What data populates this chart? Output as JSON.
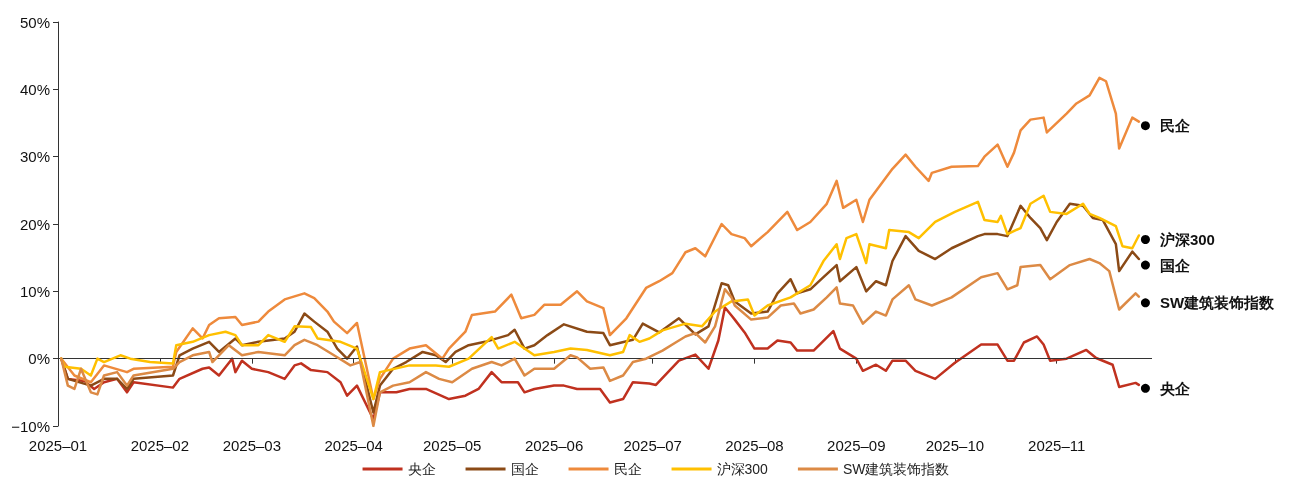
{
  "chart_data": {
    "type": "line",
    "xlim": [
      "2025-01-01",
      "2025-11-30"
    ],
    "xticks": [
      {
        "value": "2025-01-01",
        "label": "2025–01"
      },
      {
        "value": "2025-02-01",
        "label": "2025–02"
      },
      {
        "value": "2025-03-01",
        "label": "2025–03"
      },
      {
        "value": "2025-04-01",
        "label": "2025–04"
      },
      {
        "value": "2025-05-01",
        "label": "2025–05"
      },
      {
        "value": "2025-06-01",
        "label": "2025–06"
      },
      {
        "value": "2025-07-01",
        "label": "2025–07"
      },
      {
        "value": "2025-08-01",
        "label": "2025–08"
      },
      {
        "value": "2025-09-01",
        "label": "2025–09"
      },
      {
        "value": "2025-10-01",
        "label": "2025–10"
      },
      {
        "value": "2025-11-01",
        "label": "2025–11"
      }
    ],
    "ylim": [
      -10,
      50
    ],
    "yticks": [
      {
        "value": -10,
        "label": "−10%"
      },
      {
        "value": 0,
        "label": "0%"
      },
      {
        "value": 10,
        "label": "10%"
      },
      {
        "value": 20,
        "label": "20%"
      },
      {
        "value": 30,
        "label": "30%"
      },
      {
        "value": 40,
        "label": "40%"
      },
      {
        "value": 50,
        "label": "50%"
      }
    ],
    "grid": false,
    "legend": "bottom",
    "marker": "none",
    "ref_lines": [
      {
        "axis": "y",
        "value": 0,
        "color": "#333333"
      }
    ],
    "series": [
      {
        "name": "央企",
        "color": "#c0311f",
        "x": [
          "2025-01-02",
          "2025-01-04",
          "2025-01-09",
          "2025-01-12",
          "2025-01-15",
          "2025-01-19",
          "2025-01-22",
          "2025-01-24",
          "2025-02-05",
          "2025-02-07",
          "2025-02-14",
          "2025-02-16",
          "2025-02-19",
          "2025-02-23",
          "2025-02-24",
          "2025-02-26",
          "2025-03-01",
          "2025-03-06",
          "2025-03-11",
          "2025-03-14",
          "2025-03-16",
          "2025-03-19",
          "2025-03-24",
          "2025-03-28",
          "2025-03-30",
          "2025-04-02",
          "2025-04-07",
          "2025-04-09",
          "2025-04-14",
          "2025-04-18",
          "2025-04-23",
          "2025-04-30",
          "2025-05-05",
          "2025-05-09",
          "2025-05-13",
          "2025-05-16",
          "2025-05-21",
          "2025-05-23",
          "2025-05-26",
          "2025-06-01",
          "2025-06-04",
          "2025-06-08",
          "2025-06-15",
          "2025-06-18",
          "2025-06-22",
          "2025-06-25",
          "2025-06-30",
          "2025-07-02",
          "2025-07-09",
          "2025-07-14",
          "2025-07-18",
          "2025-07-21",
          "2025-07-23",
          "2025-07-25",
          "2025-07-26",
          "2025-07-29",
          "2025-08-01",
          "2025-08-05",
          "2025-08-08",
          "2025-08-12",
          "2025-08-14",
          "2025-08-19",
          "2025-08-25",
          "2025-08-27",
          "2025-09-01",
          "2025-09-03",
          "2025-09-07",
          "2025-09-10",
          "2025-09-12",
          "2025-09-16",
          "2025-09-19",
          "2025-09-25",
          "2025-10-01",
          "2025-10-09",
          "2025-10-14",
          "2025-10-17",
          "2025-10-19",
          "2025-10-22",
          "2025-10-26",
          "2025-10-28",
          "2025-10-30",
          "2025-11-04",
          "2025-11-10",
          "2025-11-13",
          "2025-11-18",
          "2025-11-20",
          "2025-11-25",
          "2025-11-26"
        ],
        "values": [
          0,
          -3,
          -3.3,
          -4.5,
          -3.5,
          -3,
          -5,
          -3.5,
          -4.3,
          -3,
          -1.5,
          -1.3,
          -2.5,
          0,
          -2,
          -0.3,
          -1.5,
          -2,
          -3,
          -1,
          -0.7,
          -1.7,
          -2,
          -3.5,
          -5.5,
          -4,
          -9,
          -5,
          -5,
          -4.5,
          -4.5,
          -6,
          -5.5,
          -4.5,
          -2,
          -3.5,
          -3.5,
          -5,
          -4.5,
          -4,
          -4,
          -4.5,
          -4.5,
          -6.5,
          -6,
          -3.5,
          -3.7,
          -3.9,
          -0.3,
          0.6,
          -1.5,
          2.7,
          7.6,
          6.4,
          5.8,
          3.9,
          1.5,
          1.5,
          2.7,
          2.4,
          1.2,
          1.2,
          4.1,
          1.5,
          0,
          -1.8,
          -0.9,
          -1.8,
          -0.3,
          -0.3,
          -1.8,
          -3,
          -0.6,
          2.1,
          2.1,
          -0.3,
          -0.3,
          2.4,
          3.3,
          2.1,
          -0.3,
          0,
          1.3,
          0.1,
          -0.9,
          -4.2,
          -3.6,
          -3.9
        ]
      },
      {
        "name": "国企",
        "color": "#8b4a16",
        "x": [
          "2025-01-02",
          "2025-01-04",
          "2025-01-11",
          "2025-01-15",
          "2025-01-19",
          "2025-01-22",
          "2025-01-24",
          "2025-02-05",
          "2025-02-07",
          "2025-02-11",
          "2025-02-16",
          "2025-02-19",
          "2025-02-24",
          "2025-02-26",
          "2025-03-03",
          "2025-03-11",
          "2025-03-14",
          "2025-03-17",
          "2025-03-20",
          "2025-03-24",
          "2025-03-27",
          "2025-03-30",
          "2025-04-02",
          "2025-04-07",
          "2025-04-09",
          "2025-04-13",
          "2025-04-17",
          "2025-04-22",
          "2025-04-26",
          "2025-04-29",
          "2025-05-02",
          "2025-05-06",
          "2025-05-11",
          "2025-05-18",
          "2025-05-20",
          "2025-05-23",
          "2025-05-26",
          "2025-05-30",
          "2025-06-04",
          "2025-06-11",
          "2025-06-16",
          "2025-06-18",
          "2025-06-25",
          "2025-06-28",
          "2025-07-03",
          "2025-07-09",
          "2025-07-14",
          "2025-07-18",
          "2025-07-22",
          "2025-07-24",
          "2025-07-26",
          "2025-07-31",
          "2025-08-05",
          "2025-08-08",
          "2025-08-12",
          "2025-08-14",
          "2025-08-18",
          "2025-08-22",
          "2025-08-26",
          "2025-08-27",
          "2025-09-01",
          "2025-09-04",
          "2025-09-07",
          "2025-09-10",
          "2025-09-12",
          "2025-09-16",
          "2025-09-20",
          "2025-09-25",
          "2025-09-30",
          "2025-10-08",
          "2025-10-10",
          "2025-10-14",
          "2025-10-17",
          "2025-10-21",
          "2025-10-24",
          "2025-10-27",
          "2025-10-29",
          "2025-11-01",
          "2025-11-05",
          "2025-11-09",
          "2025-11-12",
          "2025-11-15",
          "2025-11-19",
          "2025-11-20",
          "2025-11-24",
          "2025-11-26"
        ],
        "values": [
          0,
          -3,
          -4,
          -3,
          -3,
          -4.5,
          -3,
          -2.5,
          0.5,
          1.5,
          2.5,
          1,
          3,
          2,
          2.5,
          3,
          4,
          6.7,
          5.5,
          4,
          1.5,
          0,
          1.8,
          -8,
          -4,
          -1.5,
          -0.5,
          1,
          0.5,
          -0.5,
          1,
          2,
          2.5,
          3.5,
          4.3,
          1.5,
          2,
          3.5,
          5.1,
          4,
          3.8,
          2,
          2.8,
          5.2,
          3.9,
          6,
          3.6,
          4.8,
          11.2,
          10.9,
          8.5,
          6.7,
          7,
          9.7,
          11.8,
          9.7,
          10.3,
          12.1,
          13.9,
          11.5,
          13.6,
          10,
          11.5,
          10.9,
          14.5,
          18.2,
          16,
          14.8,
          16.4,
          18.2,
          18.5,
          18.5,
          18.2,
          22.7,
          20.9,
          19.4,
          17.6,
          20.3,
          23,
          22.7,
          20.9,
          20.6,
          17,
          13,
          15.9,
          14.8
        ]
      },
      {
        "name": "民企",
        "color": "#ee8a3c",
        "x": [
          "2025-01-02",
          "2025-01-06",
          "2025-01-11",
          "2025-01-15",
          "2025-01-22",
          "2025-01-24",
          "2025-02-05",
          "2025-02-06",
          "2025-02-11",
          "2025-02-14",
          "2025-02-16",
          "2025-02-19",
          "2025-02-24",
          "2025-02-26",
          "2025-03-03",
          "2025-03-06",
          "2025-03-11",
          "2025-03-17",
          "2025-03-20",
          "2025-03-24",
          "2025-03-26",
          "2025-03-30",
          "2025-04-02",
          "2025-04-07",
          "2025-04-09",
          "2025-04-13",
          "2025-04-18",
          "2025-04-23",
          "2025-04-28",
          "2025-04-30",
          "2025-05-05",
          "2025-05-07",
          "2025-05-14",
          "2025-05-19",
          "2025-05-22",
          "2025-05-26",
          "2025-05-29",
          "2025-06-03",
          "2025-06-08",
          "2025-06-11",
          "2025-06-16",
          "2025-06-18",
          "2025-06-23",
          "2025-06-29",
          "2025-07-03",
          "2025-07-07",
          "2025-07-11",
          "2025-07-14",
          "2025-07-17",
          "2025-07-22",
          "2025-07-25",
          "2025-07-29",
          "2025-07-31",
          "2025-08-05",
          "2025-08-11",
          "2025-08-14",
          "2025-08-18",
          "2025-08-23",
          "2025-08-26",
          "2025-08-28",
          "2025-09-01",
          "2025-09-03",
          "2025-09-05",
          "2025-09-12",
          "2025-09-16",
          "2025-09-19",
          "2025-09-23",
          "2025-09-24",
          "2025-09-30",
          "2025-10-08",
          "2025-10-10",
          "2025-10-14",
          "2025-10-17",
          "2025-10-19",
          "2025-10-21",
          "2025-10-24",
          "2025-10-28",
          "2025-10-29",
          "2025-11-04",
          "2025-11-07",
          "2025-11-11",
          "2025-11-14",
          "2025-11-16",
          "2025-11-19",
          "2025-11-20",
          "2025-11-24",
          "2025-11-26"
        ],
        "values": [
          0,
          -2.5,
          -3.5,
          -1,
          -2,
          -1.5,
          -1.2,
          1,
          4.5,
          3,
          5,
          6,
          6.2,
          5,
          5.5,
          7,
          8.8,
          9.7,
          9,
          7,
          5.5,
          3.8,
          5.3,
          -6,
          -3,
          0,
          1.5,
          2,
          0,
          1.5,
          4,
          6.5,
          7,
          9.5,
          6,
          6.5,
          8,
          8,
          10,
          8.5,
          7.5,
          3.5,
          6,
          10.5,
          11.5,
          12.7,
          15.8,
          16.4,
          15.2,
          20,
          18.5,
          17.9,
          16.7,
          18.8,
          21.8,
          19.1,
          20.3,
          23,
          26.4,
          22.4,
          23.6,
          20.3,
          23.6,
          28.2,
          30.3,
          28.5,
          26.4,
          27.6,
          28.5,
          28.6,
          30,
          31.8,
          28.5,
          30.6,
          33.9,
          35.5,
          35.8,
          33.6,
          36.4,
          37.9,
          39.1,
          41.7,
          41.2,
          36.4,
          31.2,
          35.8,
          35.2
        ]
      },
      {
        "name": "沪深300",
        "color": "#ffc000",
        "x": [
          "2025-01-02",
          "2025-01-03",
          "2025-01-08",
          "2025-01-11",
          "2025-01-13",
          "2025-01-15",
          "2025-01-20",
          "2025-01-23",
          "2025-01-29",
          "2025-02-05",
          "2025-02-06",
          "2025-02-11",
          "2025-02-16",
          "2025-02-21",
          "2025-02-24",
          "2025-02-26",
          "2025-03-03",
          "2025-03-06",
          "2025-03-11",
          "2025-03-14",
          "2025-03-19",
          "2025-03-21",
          "2025-03-28",
          "2025-04-02",
          "2025-04-07",
          "2025-04-09",
          "2025-04-18",
          "2025-04-26",
          "2025-04-30",
          "2025-05-06",
          "2025-05-13",
          "2025-05-15",
          "2025-05-20",
          "2025-05-26",
          "2025-06-01",
          "2025-06-06",
          "2025-06-11",
          "2025-06-18",
          "2025-06-22",
          "2025-06-24",
          "2025-06-27",
          "2025-06-30",
          "2025-07-04",
          "2025-07-11",
          "2025-07-16",
          "2025-07-20",
          "2025-07-25",
          "2025-07-30",
          "2025-08-01",
          "2025-08-05",
          "2025-08-12",
          "2025-08-18",
          "2025-08-22",
          "2025-08-26",
          "2025-08-27",
          "2025-08-29",
          "2025-09-01",
          "2025-09-04",
          "2025-09-05",
          "2025-09-10",
          "2025-09-11",
          "2025-09-17",
          "2025-09-20",
          "2025-09-25",
          "2025-10-01",
          "2025-10-08",
          "2025-10-10",
          "2025-10-14",
          "2025-10-15",
          "2025-10-17",
          "2025-10-21",
          "2025-10-24",
          "2025-10-28",
          "2025-10-30",
          "2025-11-04",
          "2025-11-09",
          "2025-11-11",
          "2025-11-14",
          "2025-11-19",
          "2025-11-21",
          "2025-11-24",
          "2025-11-26"
        ],
        "values": [
          0,
          -1.2,
          -1.5,
          -2.5,
          0,
          -0.5,
          0.5,
          0,
          -0.5,
          -0.7,
          2,
          2.5,
          3.5,
          4,
          3.5,
          2,
          2,
          3.5,
          2.5,
          4.8,
          4.7,
          3,
          2.5,
          1.5,
          -6,
          -2,
          -1,
          -1,
          -1.2,
          0,
          3.2,
          1.5,
          2.5,
          0.5,
          1,
          1.5,
          1.3,
          0.5,
          1,
          3.5,
          2.5,
          3,
          4.2,
          5.2,
          4.8,
          7,
          8.5,
          8.8,
          6.4,
          7.9,
          9.1,
          10.9,
          14.5,
          17,
          14.8,
          17.9,
          18.5,
          14.2,
          17,
          16.4,
          19.1,
          18.8,
          17.9,
          20.3,
          21.8,
          23.3,
          20.6,
          20.3,
          21.2,
          18.5,
          19.4,
          23,
          24.2,
          21.8,
          21.5,
          23,
          21.5,
          20.9,
          19.7,
          16.7,
          16.4,
          18.3
        ]
      },
      {
        "name": "SW建筑装饰指数",
        "color": "#dc8a45",
        "x": [
          "2025-01-02",
          "2025-01-04",
          "2025-01-06",
          "2025-01-08",
          "2025-01-11",
          "2025-01-13",
          "2025-01-15",
          "2025-01-19",
          "2025-01-22",
          "2025-01-24",
          "2025-02-05",
          "2025-02-07",
          "2025-02-11",
          "2025-02-16",
          "2025-02-17",
          "2025-02-22",
          "2025-02-26",
          "2025-03-03",
          "2025-03-11",
          "2025-03-14",
          "2025-03-17",
          "2025-03-21",
          "2025-03-26",
          "2025-03-31",
          "2025-04-03",
          "2025-04-07",
          "2025-04-09",
          "2025-04-13",
          "2025-04-18",
          "2025-04-23",
          "2025-04-27",
          "2025-05-01",
          "2025-05-07",
          "2025-05-13",
          "2025-05-16",
          "2025-05-20",
          "2025-05-23",
          "2025-05-26",
          "2025-06-01",
          "2025-06-06",
          "2025-06-08",
          "2025-06-12",
          "2025-06-16",
          "2025-06-18",
          "2025-06-22",
          "2025-06-25",
          "2025-06-29",
          "2025-07-04",
          "2025-07-08",
          "2025-07-11",
          "2025-07-14",
          "2025-07-17",
          "2025-07-20",
          "2025-07-23",
          "2025-07-25",
          "2025-07-26",
          "2025-07-31",
          "2025-08-05",
          "2025-08-09",
          "2025-08-13",
          "2025-08-15",
          "2025-08-19",
          "2025-08-23",
          "2025-08-26",
          "2025-08-27",
          "2025-08-31",
          "2025-09-03",
          "2025-09-07",
          "2025-09-10",
          "2025-09-12",
          "2025-09-17",
          "2025-09-19",
          "2025-09-24",
          "2025-09-30",
          "2025-10-09",
          "2025-10-14",
          "2025-10-17",
          "2025-10-20",
          "2025-10-21",
          "2025-10-27",
          "2025-10-30",
          "2025-11-05",
          "2025-11-11",
          "2025-11-14",
          "2025-11-17",
          "2025-11-20",
          "2025-11-25",
          "2025-11-26"
        ],
        "values": [
          0,
          -4,
          -4.5,
          -1.5,
          -5,
          -5.3,
          -2.5,
          -2,
          -4,
          -2.5,
          -1.5,
          -0.5,
          0.5,
          1,
          -0.5,
          2,
          0.5,
          1,
          0.5,
          2,
          2.8,
          2,
          0.5,
          -1,
          -0.5,
          -10,
          -5,
          -4,
          -3.5,
          -2,
          -3,
          -3.5,
          -1.5,
          -0.5,
          -1,
          0,
          -2.5,
          -1.5,
          -1.5,
          0.5,
          0.2,
          -1.5,
          -1.3,
          -3.3,
          -2.5,
          -0.5,
          0,
          1.2,
          2.4,
          3.3,
          3.8,
          2.4,
          4.8,
          10.3,
          9.1,
          7.9,
          5.8,
          6.1,
          7.9,
          8.2,
          6.7,
          7.3,
          9.1,
          10.6,
          8.2,
          7.9,
          5.2,
          7,
          6.4,
          8.8,
          10.9,
          8.8,
          7.9,
          9.1,
          12.1,
          12.7,
          10.3,
          10.9,
          13.6,
          13.9,
          11.8,
          13.9,
          14.8,
          14.2,
          13,
          7.3,
          9.7,
          9.2
        ]
      }
    ],
    "annotations": [
      {
        "text": "民企",
        "x": "2025-11-28",
        "y": 34.6
      },
      {
        "text": "沪深300",
        "x": "2025-11-28",
        "y": 17.7
      },
      {
        "text": "国企",
        "x": "2025-11-28",
        "y": 13.9
      },
      {
        "text": "SW建筑装饰指数",
        "x": "2025-11-28",
        "y": 8.3
      },
      {
        "text": "央企",
        "x": "2025-11-28",
        "y": -4.4
      }
    ]
  }
}
